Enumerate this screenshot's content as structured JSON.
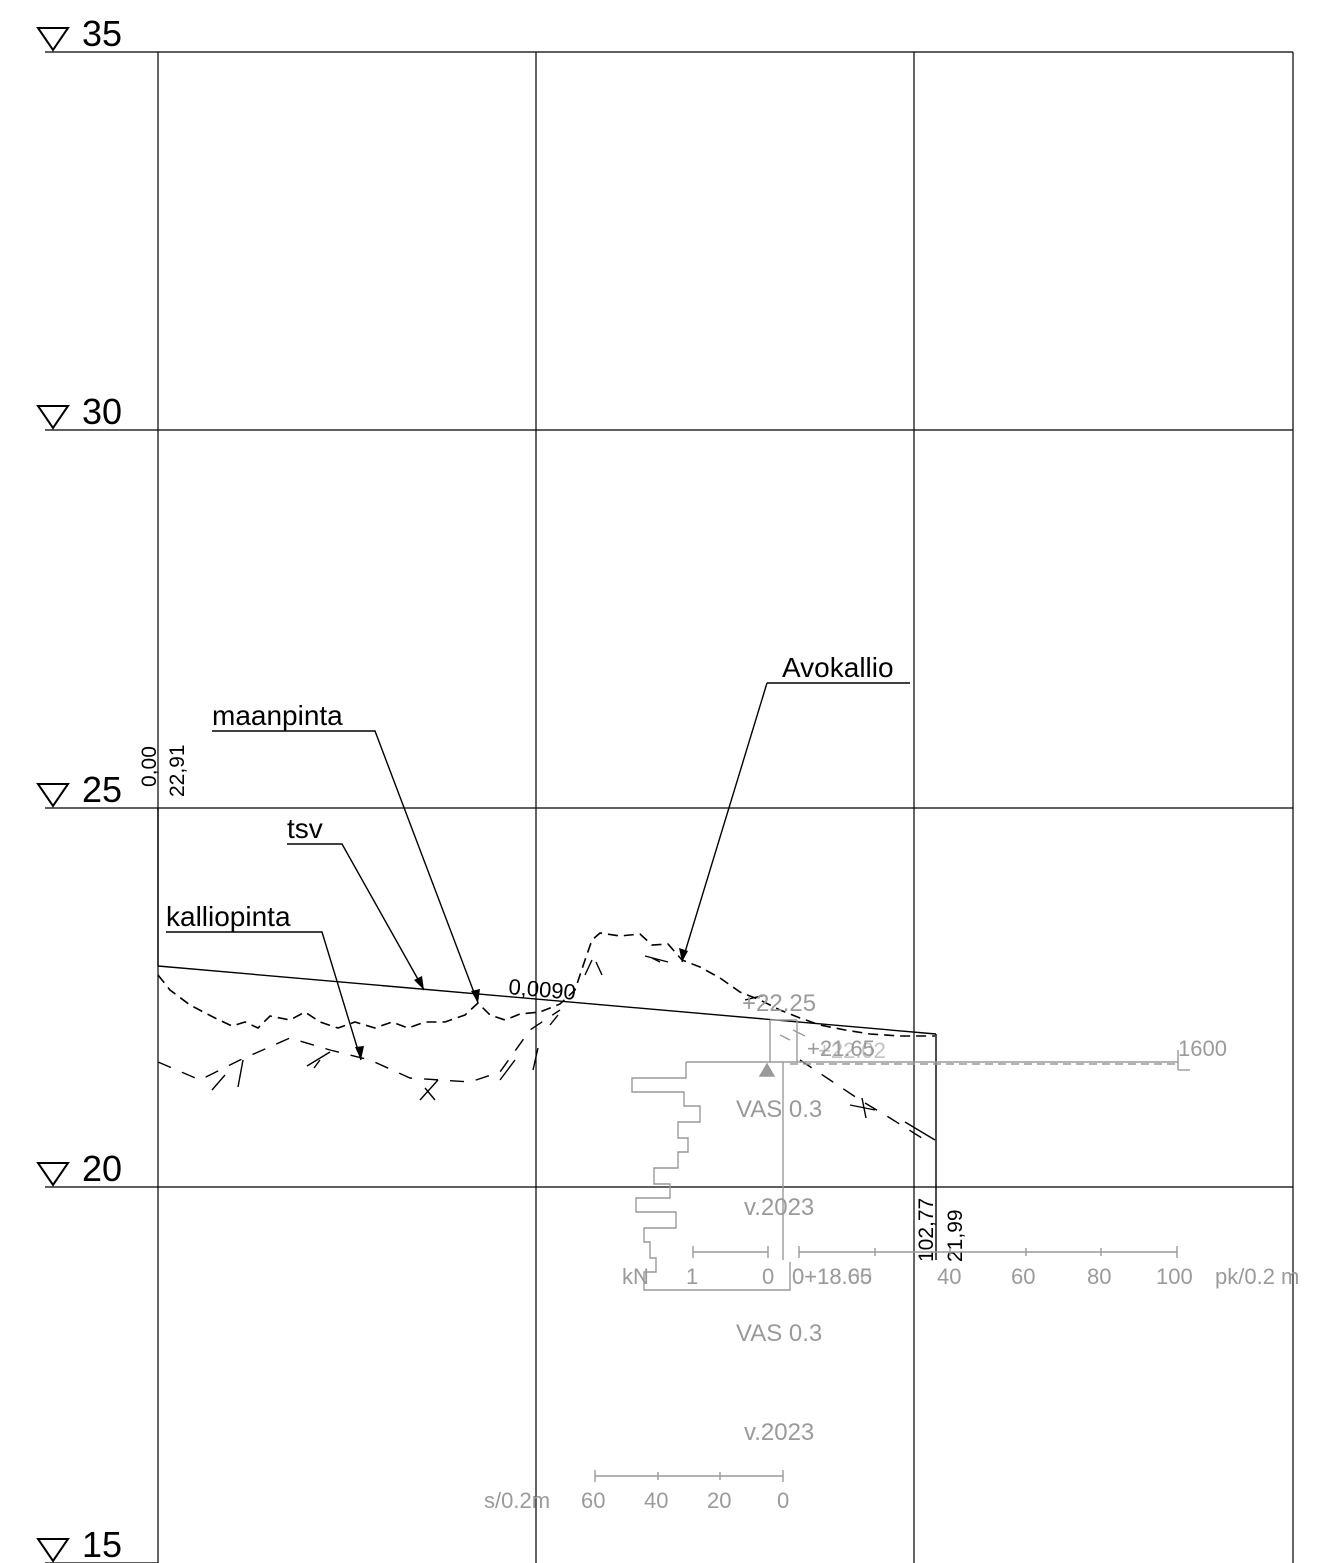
{
  "elevations": [
    "35",
    "30",
    "25",
    "20",
    "15"
  ],
  "labels": {
    "avokallio": "Avokallio",
    "maanpinta": "maanpinta",
    "tsv": "tsv",
    "kalliopinta": "kalliopinta"
  },
  "start_station": {
    "station": "0,00",
    "elevation": "22,91"
  },
  "end_station": {
    "station": "102,77",
    "elevation": "21,99"
  },
  "slope": "0,0090",
  "sounding": {
    "top_elevation": "+22.25",
    "ground_elevation": "+21.65",
    "ground_elevation_2": "+22.02",
    "max_value": "1600",
    "method_1": "VAS 0.3",
    "year_1": "v.2023",
    "method_2": "VAS 0.3",
    "year_2": "v.2023",
    "bottom_label": "0+18.65",
    "bottom_label_2": "0+18.00",
    "force_unit": "kN",
    "force_ticks": [
      "1",
      "0"
    ],
    "penetration_ticks": [
      "20",
      "40",
      "60",
      "80",
      "100"
    ],
    "penetration_unit": "pk/0.2 m",
    "rotation_unit": "s/0.2m",
    "rotation_ticks": [
      "60",
      "40",
      "20",
      "0"
    ]
  },
  "colors": {
    "line": "#000000",
    "sounding": "#9a9a9a",
    "grid": "#000000"
  }
}
